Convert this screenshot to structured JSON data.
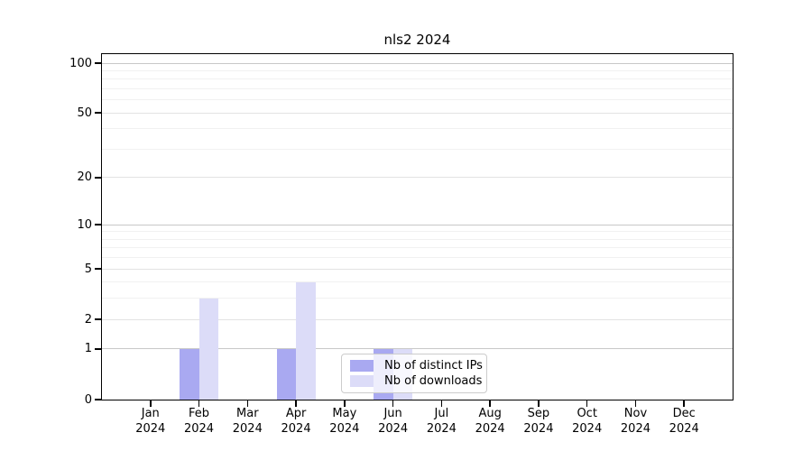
{
  "chart_data": {
    "type": "bar",
    "title": "nls2 2024",
    "categories": [
      "Jan 2024",
      "Feb 2024",
      "Mar 2024",
      "Apr 2024",
      "May 2024",
      "Jun 2024",
      "Jul 2024",
      "Aug 2024",
      "Sep 2024",
      "Oct 2024",
      "Nov 2024",
      "Dec 2024"
    ],
    "series": [
      {
        "name": "Nb of distinct IPs",
        "color": "#a9a9f1",
        "values": [
          0,
          1,
          0,
          1,
          0,
          1,
          0,
          0,
          0,
          0,
          0,
          0
        ]
      },
      {
        "name": "Nb of downloads",
        "color": "#dcdcf8",
        "values": [
          0,
          3,
          0,
          4,
          0,
          1,
          0,
          0,
          0,
          0,
          0,
          0
        ]
      }
    ],
    "y_axis": {
      "scale": "log1p",
      "ticks": [
        0,
        1,
        2,
        5,
        10,
        20,
        50,
        100
      ],
      "ylim": [
        0,
        114
      ]
    },
    "grid": {
      "major": [
        1,
        10,
        100
      ],
      "mid": [
        2,
        5,
        20,
        50
      ],
      "minor": [
        3,
        4,
        6,
        7,
        8,
        9,
        30,
        40,
        60,
        70,
        80,
        90
      ]
    },
    "legend": {
      "position": "lower-center-inside"
    }
  },
  "colors": {
    "bar_distinct_ips": "#a9a9f1",
    "bar_downloads": "#dcdcf8",
    "grid_major": "#c8c8c8",
    "grid_mid": "#e3e3e3",
    "grid_minor": "#f1f1f1",
    "axis": "#000000",
    "legend_border": "#cccccc"
  }
}
